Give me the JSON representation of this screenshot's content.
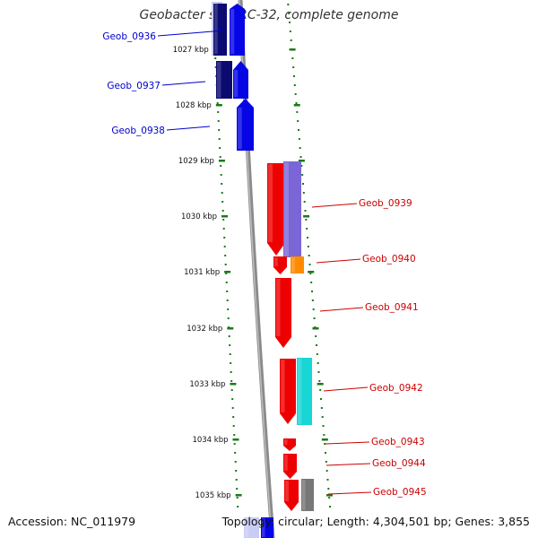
{
  "title": "Geobacter sp. FRC-32, complete genome",
  "footer": {
    "accession": "Accession: NC_011979",
    "summary": "Topology: circular; Length: 4,304,501 bp; Genes: 3,855"
  },
  "colors": {
    "backbone": "#8a8a8a",
    "tick": "#1a7a1a",
    "left_label": "#0000cc",
    "right_label": "#cc0000",
    "navy": "#0a0a70",
    "blue": "#0505e6",
    "red": "#ee0000",
    "purple": "#7a66d6",
    "orange": "#ff8c00",
    "cyan": "#18d6d6",
    "gray": "#777777",
    "lightblue": "#c9ccf4"
  },
  "ruler": [
    {
      "label": "1027 kbp"
    },
    {
      "label": "1028 kbp"
    },
    {
      "label": "1029 kbp"
    },
    {
      "label": "1030 kbp"
    },
    {
      "label": "1031 kbp"
    },
    {
      "label": "1032 kbp"
    },
    {
      "label": "1033 kbp"
    },
    {
      "label": "1034 kbp"
    },
    {
      "label": "1035 kbp"
    }
  ],
  "genes_left": [
    {
      "name": "Geob_0936"
    },
    {
      "name": "Geob_0937"
    },
    {
      "name": "Geob_0938"
    }
  ],
  "genes_right": [
    {
      "name": "Geob_0939"
    },
    {
      "name": "Geob_0940"
    },
    {
      "name": "Geob_0941"
    },
    {
      "name": "Geob_0942"
    },
    {
      "name": "Geob_0943"
    },
    {
      "name": "Geob_0944"
    },
    {
      "name": "Geob_0945"
    }
  ]
}
